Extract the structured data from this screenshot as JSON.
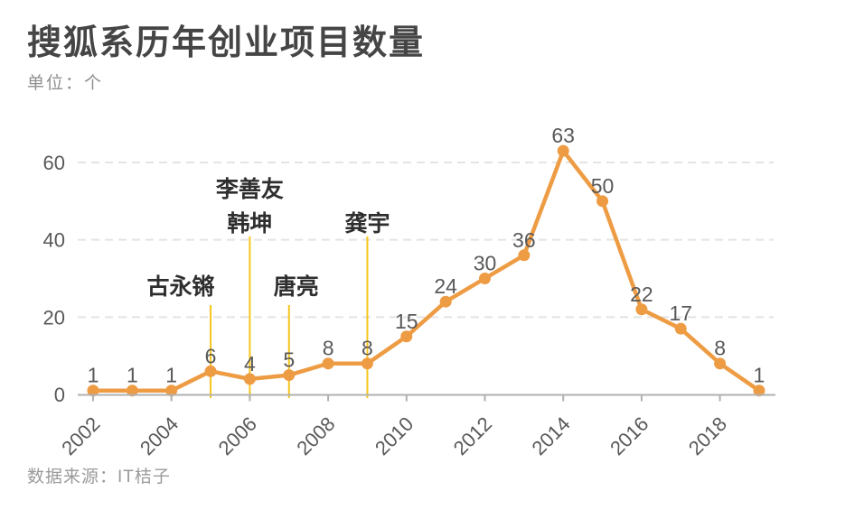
{
  "chart_data": {
    "type": "line",
    "title": "搜狐系历年创业项目数量",
    "unit_label": "单位：个",
    "source_label": "数据来源：IT桔子",
    "x": [
      2002,
      2003,
      2004,
      2005,
      2006,
      2007,
      2008,
      2009,
      2010,
      2011,
      2012,
      2013,
      2014,
      2015,
      2016,
      2017,
      2018,
      2019
    ],
    "values": [
      1,
      1,
      1,
      6,
      4,
      5,
      8,
      8,
      15,
      24,
      30,
      36,
      63,
      50,
      22,
      17,
      8,
      1
    ],
    "xtick_labels": [
      "2002",
      "2004",
      "2006",
      "2008",
      "2010",
      "2012",
      "2014",
      "2016",
      "2018"
    ],
    "yticks": [
      0,
      20,
      40,
      60
    ],
    "ylim": [
      0,
      70
    ],
    "grid": "horizontal-dashed",
    "legend": "none",
    "point_labels_shown": true,
    "annotations": [
      {
        "names": [
          "古永锵"
        ],
        "year": 2005,
        "tier": "low"
      },
      {
        "names": [
          "李善友",
          "韩坤"
        ],
        "year": 2006,
        "tier": "high"
      },
      {
        "names": [
          "唐亮"
        ],
        "year": 2007,
        "tier": "low"
      },
      {
        "names": [
          "龚宇"
        ],
        "year": 2009,
        "tier": "high"
      }
    ],
    "colors": {
      "line": "#EE9C44",
      "point": "#EE9C44",
      "annotation_line": "#F5C51D",
      "annotation_text": "#2E2E2E",
      "tick_label": "#595959",
      "point_label": "#595959",
      "axis": "#B0B0B0",
      "gridline": "#E4E4E4",
      "title": "#454545",
      "muted_text": "#8F8F8F"
    }
  }
}
